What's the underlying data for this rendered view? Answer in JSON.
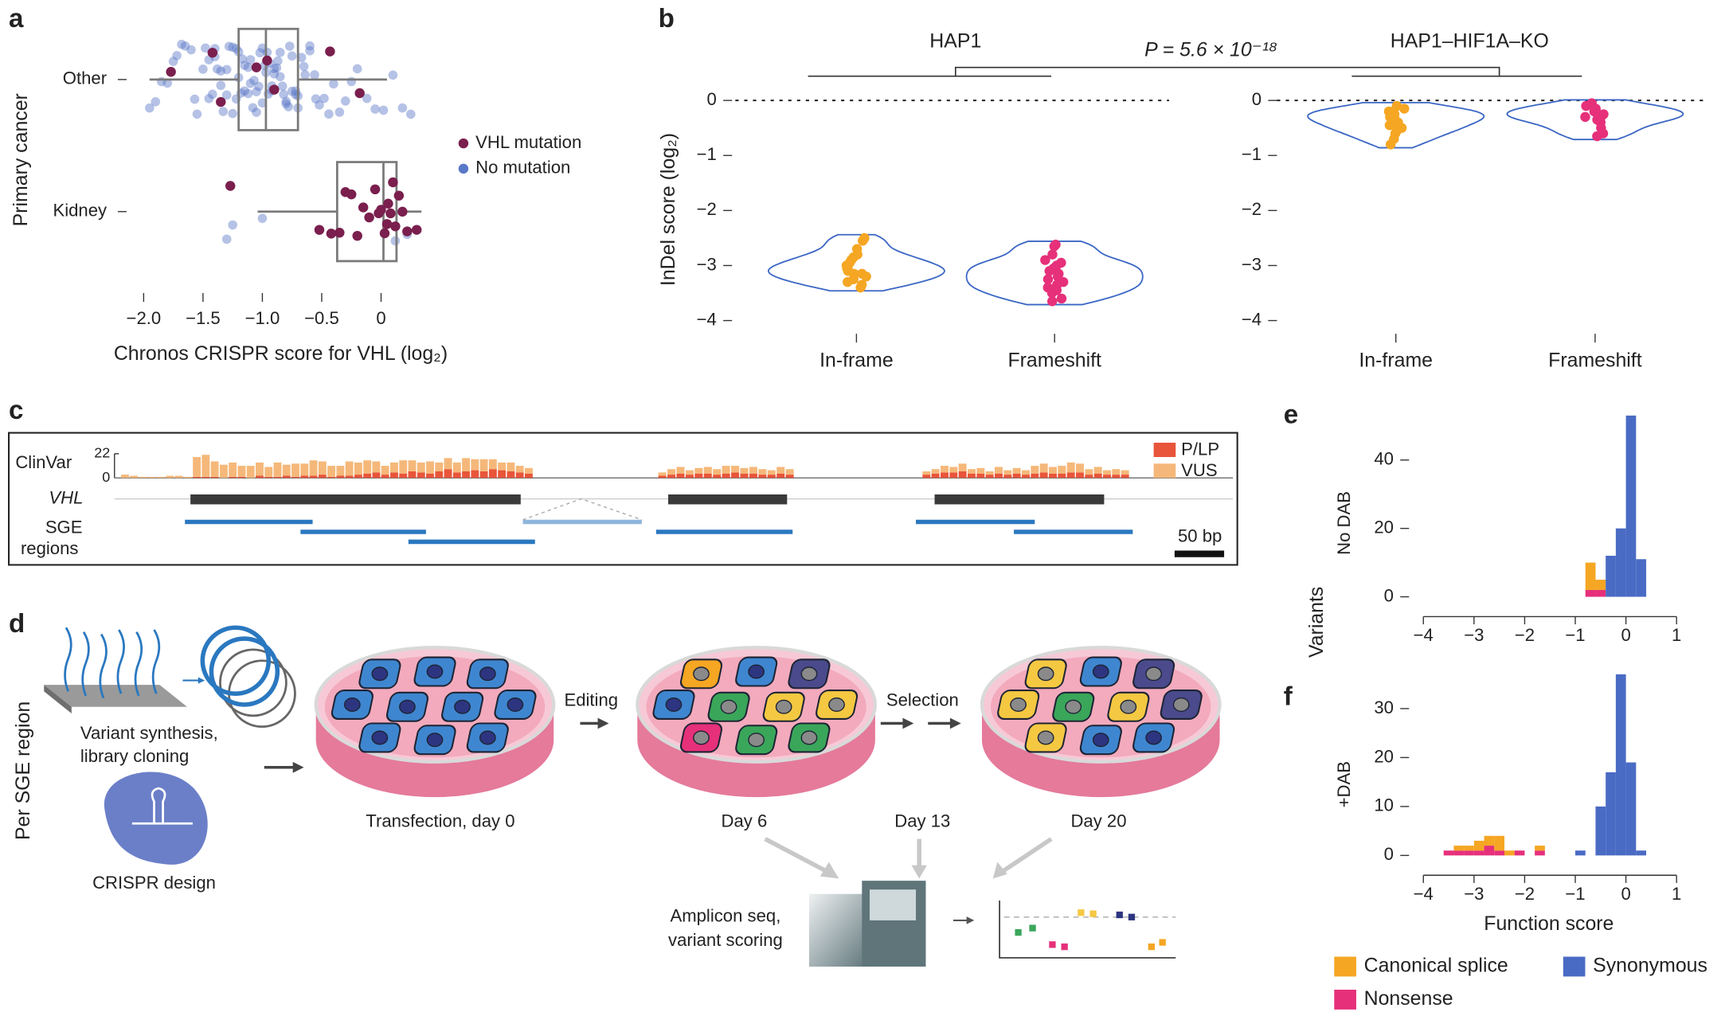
{
  "panel_labels": [
    "a",
    "b",
    "c",
    "d",
    "e",
    "f"
  ],
  "chart_data": [
    {
      "type": "box_strip",
      "x_label": "Chronos CRISPR score for VHL (log₂)",
      "y_label": "Primary cancer",
      "categories": [
        "Other",
        "Kidney"
      ],
      "xlim": [
        -2.19,
        0.36
      ],
      "xticks": [
        {
          "value": -2,
          "label": "−2.0"
        },
        {
          "value": -1.5,
          "label": "−1.5"
        },
        {
          "value": -1,
          "label": "−1.0"
        },
        {
          "value": -0.5,
          "label": "−0.5"
        },
        0
      ],
      "boxes": [
        {
          "whislo": -1.95,
          "q1": -1.2,
          "med": -0.97,
          "q3": -0.7,
          "whishi": 0.05
        },
        {
          "whislo": -1.04,
          "q1": -0.37,
          "med": 0.02,
          "q3": 0.13,
          "whishi": 0.34
        }
      ],
      "box_color": "#7a7a7a",
      "series": [
        {
          "name": "No mutation",
          "color": "#5a78c8",
          "values": [
            [
              -1.95,
              -1.9,
              -1.85,
              -1.8,
              -1.75,
              -1.72,
              -1.68,
              -1.65,
              -1.6,
              -1.57,
              -1.55,
              -1.5,
              -1.48,
              -1.45,
              -1.42,
              -1.4,
              -1.38,
              -1.35,
              -1.33,
              -1.3,
              -1.28,
              -1.25,
              -1.22,
              -1.2,
              -1.18,
              -1.15,
              -1.12,
              -1.1,
              -1.08,
              -1.05,
              -1.03,
              -1.0,
              -0.98,
              -0.96,
              -0.94,
              -0.92,
              -0.9,
              -0.88,
              -0.85,
              -0.83,
              -0.8,
              -0.78,
              -0.75,
              -0.72,
              -0.7,
              -0.67,
              -0.64,
              -0.6,
              -0.56,
              -0.52,
              -0.48,
              -0.44,
              -0.4,
              -0.35,
              -0.3,
              -0.25,
              -0.2,
              -0.12,
              -0.05,
              0.02,
              0.1,
              0.18,
              0.25,
              -1.3,
              -1.25,
              -1.2,
              -1.15,
              -1.1,
              -1.05,
              -1.0,
              -0.95,
              -0.9,
              -0.85,
              -0.8,
              -0.75,
              -0.7,
              -1.22,
              -1.12,
              -1.02,
              -0.92,
              -0.82,
              -0.72,
              -1.17,
              -1.07,
              -0.97,
              -0.87,
              -0.77,
              -1.35,
              -0.65,
              -1.4,
              -0.6,
              -1.45,
              -0.55
            ],
            [
              -1.3,
              -1.25,
              -1.0,
              0.22,
              0.12
            ]
          ]
        },
        {
          "name": "VHL mutation",
          "color": "#7a1f4e",
          "values": [
            [
              -1.77,
              -1.42,
              -1.35,
              -0.96,
              -0.43,
              -0.18,
              -0.9,
              -1.05
            ],
            [
              -1.27,
              -0.52,
              -0.42,
              -0.35,
              -0.3,
              -0.25,
              -0.2,
              -0.15,
              -0.1,
              -0.05,
              0,
              0.03,
              0.06,
              0.1,
              0.12,
              0.15,
              0.18,
              0.22,
              0.3,
              -0.02,
              0.08,
              0.05
            ]
          ]
        }
      ]
    },
    {
      "type": "violin",
      "y_label": "InDel score (log₂)",
      "annotation": "P = 5.6 × 10⁻¹⁸",
      "categories": [
        "In-frame",
        "Frameshift"
      ],
      "colors": [
        "#f5a623",
        "#e6307a"
      ],
      "outline_color": "#3a66c4",
      "ylim": [
        -4.1,
        0.3
      ],
      "yticks": [
        0,
        {
          "value": -1,
          "label": "−1"
        },
        {
          "value": -2,
          "label": "−2"
        },
        {
          "value": -3,
          "label": "−3"
        },
        {
          "value": -4,
          "label": "−4"
        }
      ],
      "reference_line": 0,
      "facets": [
        {
          "title": "HAP1",
          "values": [
            [
              -2.5,
              -2.55,
              -2.7,
              -2.8,
              -2.9,
              -2.95,
              -3.0,
              -3.05,
              -3.1,
              -3.15,
              -3.2,
              -3.25,
              -3.3,
              -3.35,
              -3.4,
              -3.05,
              -2.85,
              -3.15
            ],
            [
              -2.62,
              -2.65,
              -2.8,
              -2.9,
              -3.0,
              -3.05,
              -3.1,
              -3.2,
              -3.25,
              -3.3,
              -3.35,
              -3.45,
              -3.5,
              -3.6,
              -3.65,
              -3.15,
              -2.95,
              -3.4
            ]
          ]
        },
        {
          "title": "HAP1–HIF1A–KO",
          "values": [
            [
              -0.15,
              -0.2,
              -0.25,
              -0.3,
              -0.35,
              -0.4,
              -0.45,
              -0.5,
              -0.55,
              -0.6,
              -0.7,
              -0.8,
              -0.1,
              -0.3,
              -0.2
            ],
            [
              -0.05,
              -0.1,
              -0.15,
              -0.2,
              -0.25,
              -0.3,
              -0.35,
              -0.4,
              -0.5,
              -0.6,
              -0.65,
              -0.2,
              -0.3
            ]
          ]
        }
      ]
    },
    {
      "type": "clinvar_track",
      "y_label": "ClinVar",
      "ylim": [
        0,
        22
      ],
      "yticks": [
        0,
        22
      ],
      "gene_label": "VHL",
      "regions_label": [
        "SGE",
        "regions"
      ],
      "scale_bar": "50 bp",
      "series": [
        {
          "name": "P/LP",
          "color": "#e8553a",
          "values": [
            0,
            0,
            0,
            0,
            0,
            0,
            0,
            0,
            1,
            1,
            1,
            0,
            1,
            1,
            0,
            2,
            1,
            1,
            2,
            1,
            2,
            2,
            3,
            1,
            2,
            2,
            3,
            4,
            5,
            3,
            5,
            4,
            6,
            5,
            4,
            6,
            8,
            5,
            6,
            7,
            6,
            8,
            7,
            6,
            5,
            4,
            2,
            3,
            4,
            3,
            4,
            4,
            3,
            4,
            5,
            4,
            4,
            3,
            3,
            4,
            3,
            3,
            4,
            5,
            5,
            6,
            4,
            4,
            3,
            4,
            3,
            4,
            3,
            4,
            5,
            4,
            4,
            5,
            5,
            3,
            4,
            3,
            3,
            3
          ]
        },
        {
          "name": "VUS",
          "color": "#f5b87a",
          "values": [
            3,
            2,
            1,
            1,
            1,
            2,
            2,
            1,
            18,
            20,
            14,
            12,
            13,
            10,
            11,
            12,
            9,
            13,
            10,
            12,
            11,
            14,
            12,
            10,
            9,
            13,
            11,
            12,
            10,
            8,
            9,
            12,
            10,
            9,
            11,
            8,
            10,
            9,
            12,
            10,
            11,
            9,
            7,
            8,
            6,
            5,
            3,
            5,
            6,
            4,
            5,
            6,
            5,
            7,
            6,
            5,
            6,
            5,
            4,
            6,
            5,
            3,
            4,
            6,
            5,
            7,
            4,
            5,
            3,
            6,
            4,
            5,
            4,
            7,
            8,
            6,
            7,
            9,
            8,
            5,
            6,
            4,
            5,
            4
          ]
        }
      ]
    },
    {
      "type": "histogram",
      "x_label": "Function score",
      "y_label": "Variants",
      "bins": [
        -4,
        -3.8,
        -3.6,
        -3.4,
        -3.2,
        -3,
        -2.8,
        -2.6,
        -2.4,
        -2.2,
        -2,
        -1.8,
        -1.6,
        -1.4,
        -1.2,
        -1,
        -0.8,
        -0.6,
        -0.4,
        -0.2,
        0,
        0.2,
        0.4,
        0.6,
        0.8,
        1
      ],
      "xlim": [
        -4,
        1
      ],
      "xticks": [
        {
          "value": -4,
          "label": "−4"
        },
        {
          "value": -3,
          "label": "−3"
        },
        {
          "value": -2,
          "label": "−2"
        },
        {
          "value": -1,
          "label": "−1"
        },
        0,
        1
      ],
      "series": [
        {
          "name": "Canonical splice",
          "color": "#f5a623"
        },
        {
          "name": "Nonsense",
          "color": "#e6307a"
        },
        {
          "name": "Synonymous",
          "color": "#4a6bc4"
        }
      ],
      "panels": [
        {
          "label": "No DAB",
          "ylim": [
            0,
            56
          ],
          "yticks": [
            0,
            20,
            40
          ],
          "counts": [
            [
              0,
              0,
              0,
              0,
              0,
              0,
              0,
              0,
              0,
              0,
              0,
              0,
              0,
              0,
              0,
              0,
              8,
              3,
              0,
              0,
              0,
              0,
              0,
              0,
              0
            ],
            [
              0,
              0,
              0,
              0,
              0,
              0,
              0,
              0,
              0,
              0,
              0,
              0,
              0,
              0,
              0,
              0,
              2,
              2,
              0,
              0,
              0,
              0,
              0,
              0,
              0
            ],
            [
              0,
              0,
              0,
              0,
              0,
              0,
              0,
              0,
              0,
              0,
              0,
              0,
              0,
              0,
              0,
              0,
              0,
              0,
              12,
              20,
              53,
              11,
              0,
              0,
              0
            ]
          ]
        },
        {
          "label": "+DAB",
          "ylim": [
            0,
            38
          ],
          "yticks": [
            0,
            10,
            20,
            30
          ],
          "counts": [
            [
              0,
              0,
              0,
              1,
              1,
              2,
              2,
              3,
              1,
              0,
              0,
              1,
              0,
              0,
              0,
              0,
              0,
              0,
              0,
              0,
              0,
              0,
              0,
              0,
              0
            ],
            [
              0,
              0,
              1,
              1,
              1,
              1,
              2,
              1,
              0,
              1,
              0,
              1,
              0,
              0,
              0,
              0,
              0,
              0,
              0,
              0,
              0,
              0,
              0,
              0,
              0
            ],
            [
              0,
              0,
              0,
              0,
              0,
              0,
              0,
              0,
              0,
              0,
              0,
              0,
              0,
              0,
              0,
              1,
              0,
              10,
              17,
              37,
              19,
              1,
              0,
              0,
              0
            ]
          ]
        }
      ]
    }
  ],
  "diagram": {
    "side_label": "Per SGE region",
    "synthesis": [
      "Variant synthesis,",
      "library cloning"
    ],
    "crispr": "CRISPR design",
    "steps": [
      "Transfection, day 0",
      "Day 6",
      "Day 13",
      "Day 20"
    ],
    "transitions": [
      "Editing",
      "Selection"
    ],
    "readout": [
      "Amplicon seq,",
      "variant scoring"
    ]
  }
}
